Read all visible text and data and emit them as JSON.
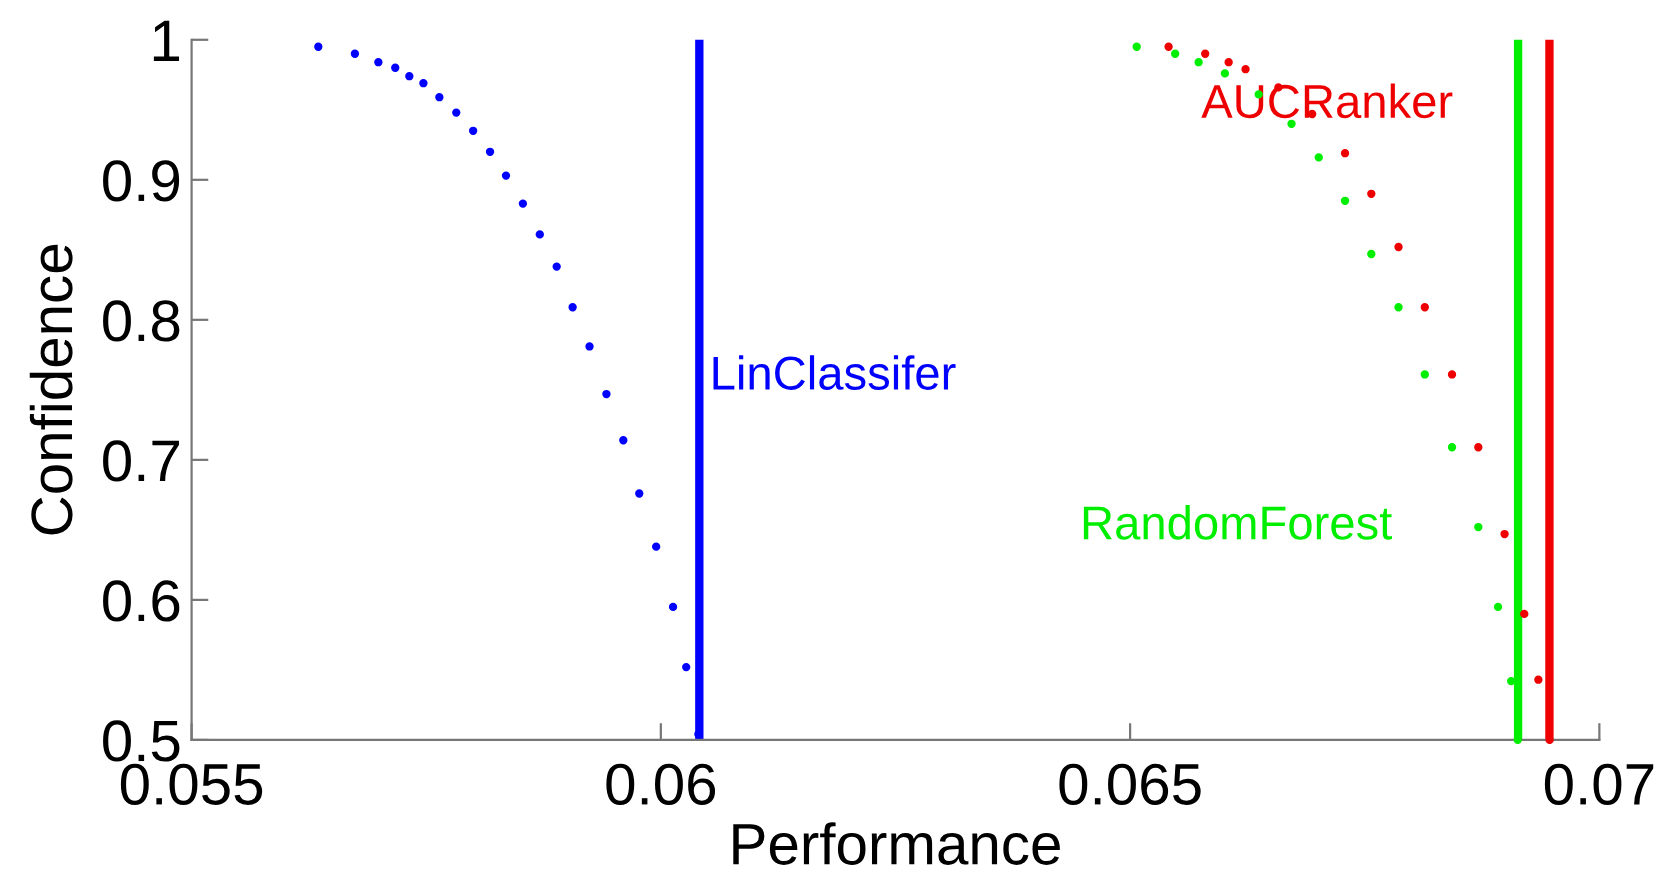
{
  "chart_data": {
    "type": "scatter",
    "xlabel": "Performance",
    "ylabel": "Confidence",
    "xlim": [
      0.055,
      0.07
    ],
    "ylim": [
      0.5,
      1
    ],
    "xticks": [
      0.055,
      0.06,
      0.065,
      0.07
    ],
    "yticks": [
      0.5,
      0.6,
      0.7,
      0.8,
      0.9,
      1
    ],
    "grid": false,
    "legend": false,
    "marker": "circle",
    "series": [
      {
        "name": "LinClassifer",
        "color": "#0000ff",
        "x": [
          0.05635,
          0.05674,
          0.05699,
          0.05717,
          0.05732,
          0.05747,
          0.05764,
          0.05782,
          0.058,
          0.05818,
          0.05835,
          0.05853,
          0.05871,
          0.05889,
          0.05906,
          0.05924,
          0.05942,
          0.0596,
          0.05977,
          0.05995,
          0.06013,
          0.06027,
          0.0604
        ],
        "values": [
          0.995,
          0.99,
          0.984,
          0.98,
          0.974,
          0.969,
          0.959,
          0.948,
          0.935,
          0.92,
          0.903,
          0.883,
          0.861,
          0.838,
          0.809,
          0.781,
          0.747,
          0.714,
          0.676,
          0.638,
          0.595,
          0.552,
          0.504
        ]
      },
      {
        "name": "RandomForest",
        "color": "#00ee00",
        "x": [
          0.06507,
          0.06548,
          0.06573,
          0.06601,
          0.06637,
          0.06672,
          0.06701,
          0.06729,
          0.06757,
          0.06786,
          0.06814,
          0.06843,
          0.06871,
          0.06892,
          0.06906,
          0.06913
        ],
        "values": [
          0.995,
          0.99,
          0.984,
          0.976,
          0.961,
          0.94,
          0.916,
          0.885,
          0.847,
          0.809,
          0.761,
          0.709,
          0.652,
          0.595,
          0.542,
          0.5
        ]
      },
      {
        "name": "AUCRanker",
        "color": "#ee0000",
        "x": [
          0.06541,
          0.0658,
          0.06605,
          0.06623,
          0.06658,
          0.06694,
          0.06729,
          0.06757,
          0.06786,
          0.06814,
          0.06843,
          0.06871,
          0.06899,
          0.0692,
          0.06935,
          0.06947
        ],
        "values": [
          0.995,
          0.99,
          0.984,
          0.979,
          0.966,
          0.947,
          0.919,
          0.89,
          0.852,
          0.809,
          0.761,
          0.709,
          0.647,
          0.59,
          0.543,
          0.5
        ]
      }
    ],
    "ref_lines": [
      {
        "axis": "x",
        "value": 0.06041,
        "color": "#0000ff",
        "line_style": "solid"
      },
      {
        "axis": "x",
        "value": 0.069134,
        "color": "#00ee00",
        "line_style": "solid"
      },
      {
        "axis": "x",
        "value": 0.069468,
        "color": "#ee0000",
        "line_style": "solid"
      }
    ]
  }
}
